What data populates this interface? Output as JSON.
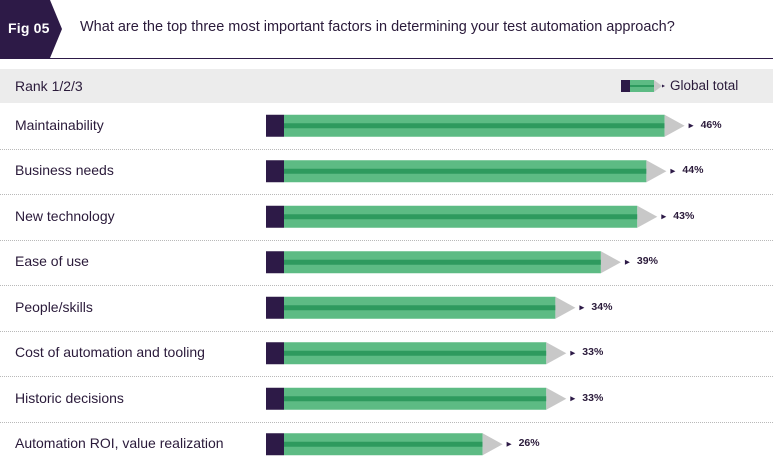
{
  "figure": {
    "tag": "Fig 05",
    "question": "What are the top three most important factors in determining your test automation approach?"
  },
  "header": {
    "rank_title": "Rank 1/2/3",
    "legend_label": "Global total"
  },
  "colors": {
    "dark": "#2d1a47",
    "green": "#5dbb84",
    "green_dark": "#2e9a5e",
    "tip": "#c8c8c8"
  },
  "chart_data": {
    "type": "bar",
    "orientation": "horizontal",
    "categories": [
      "Maintainability",
      "Business needs",
      "New technology",
      "Ease of use",
      "People/skills",
      "Cost of automation and tooling",
      "Historic decisions",
      "Automation ROI, value realization"
    ],
    "series": [
      {
        "name": "Global total",
        "values": [
          46,
          44,
          43,
          39,
          34,
          33,
          33,
          26
        ]
      }
    ],
    "value_labels": [
      "46%",
      "44%",
      "43%",
      "39%",
      "34%",
      "33%",
      "33%",
      "26%"
    ],
    "unit": "%",
    "grid": false,
    "legend": "top-right"
  }
}
